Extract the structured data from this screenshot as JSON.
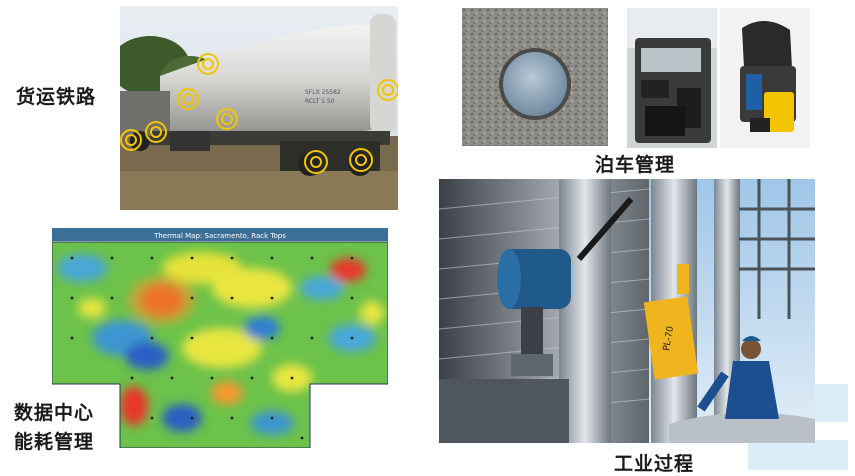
{
  "labels": {
    "freight_rail": "货运铁路",
    "parking": "泊车管理",
    "datacenter_line1": "数据中心",
    "datacenter_line2": "能耗管理",
    "industrial": "工业过程"
  },
  "thermal_map": {
    "title": "Thermal Map: Sacramento, Rack Tops"
  },
  "tank_car": {
    "marking_1": "SFLX 25582",
    "marking_2": "RCLT 1.50"
  },
  "pipe_tag": "PL-70",
  "colors": {
    "sensor_ring": "#f2c500",
    "thermal_header": "#3b6f97",
    "tag_yellow": "#f0b41e",
    "transmitter_blue": "#1f5a8a"
  }
}
